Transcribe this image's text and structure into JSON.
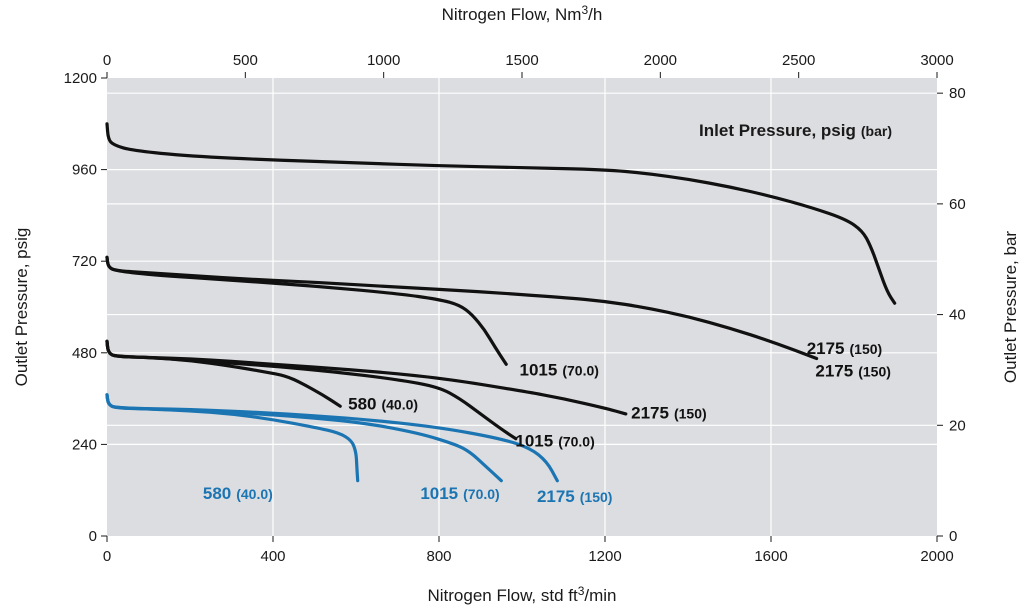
{
  "chart_data": {
    "type": "line",
    "title": "",
    "top_axis": {
      "label": "Nitrogen Flow, Nm",
      "label_sup": "3",
      "label_suffix": "/h",
      "range": [
        0,
        3000
      ],
      "ticks": [
        0,
        500,
        1000,
        1500,
        2000,
        2500,
        3000
      ]
    },
    "bottom_axis": {
      "label": "Nitrogen Flow, std ft",
      "label_sup": "3",
      "label_suffix": "/min",
      "range": [
        0,
        2000
      ],
      "ticks": [
        0,
        400,
        800,
        1200,
        1600,
        2000
      ]
    },
    "left_axis": {
      "label": "Outlet Pressure, psig",
      "range": [
        0,
        1200
      ],
      "ticks": [
        0,
        240,
        480,
        720,
        960,
        1200
      ]
    },
    "right_axis": {
      "label": "Outlet Pressure, bar",
      "range": [
        0,
        82.74
      ],
      "ticks": [
        0,
        20,
        40,
        60,
        80
      ]
    },
    "grid": true,
    "legend_title": "Inlet Pressure, psig",
    "legend_title_sub": "(bar)",
    "colors": {
      "black": "#111111",
      "blue": "#1c75b3",
      "plot_bg": "#dcdde0",
      "grid": "#ffffff"
    },
    "series": [
      {
        "label": "2175",
        "label_sub": "(150)",
        "color": "black",
        "points": [
          [
            0,
            1080
          ],
          [
            3,
            1040
          ],
          [
            15,
            1025
          ],
          [
            60,
            1010
          ],
          [
            200,
            995
          ],
          [
            400,
            985
          ],
          [
            600,
            978
          ],
          [
            800,
            970
          ],
          [
            1000,
            965
          ],
          [
            1200,
            960
          ],
          [
            1300,
            950
          ],
          [
            1400,
            935
          ],
          [
            1500,
            915
          ],
          [
            1600,
            890
          ],
          [
            1700,
            860
          ],
          [
            1780,
            830
          ],
          [
            1820,
            800
          ],
          [
            1840,
            760
          ],
          [
            1860,
            700
          ],
          [
            1880,
            640
          ],
          [
            1898,
            610
          ]
        ],
        "label_at": [
          1707,
          433
        ]
      },
      {
        "label": "1015",
        "label_sub": "(70.0)",
        "color": "black",
        "points": [
          [
            0,
            730
          ],
          [
            3,
            705
          ],
          [
            20,
            695
          ],
          [
            100,
            685
          ],
          [
            300,
            670
          ],
          [
            500,
            655
          ],
          [
            700,
            635
          ],
          [
            800,
            620
          ],
          [
            850,
            605
          ],
          [
            880,
            580
          ],
          [
            910,
            540
          ],
          [
            935,
            495
          ],
          [
            962,
            450
          ]
        ],
        "label_at": [
          994,
          436
        ]
      },
      {
        "label": "2175",
        "label_sub": "(150)",
        "color": "black",
        "points": [
          [
            0,
            730
          ],
          [
            3,
            705
          ],
          [
            20,
            695
          ],
          [
            100,
            690
          ],
          [
            300,
            675
          ],
          [
            500,
            665
          ],
          [
            700,
            652
          ],
          [
            900,
            640
          ],
          [
            1100,
            625
          ],
          [
            1200,
            615
          ],
          [
            1300,
            598
          ],
          [
            1400,
            575
          ],
          [
            1500,
            545
          ],
          [
            1600,
            510
          ],
          [
            1710,
            465
          ]
        ],
        "label_at": [
          1686,
          492
        ]
      },
      {
        "label": "580",
        "label_sub": "(40.0)",
        "color": "black",
        "points": [
          [
            0,
            510
          ],
          [
            3,
            480
          ],
          [
            20,
            470
          ],
          [
            100,
            468
          ],
          [
            200,
            460
          ],
          [
            300,
            445
          ],
          [
            380,
            430
          ],
          [
            430,
            420
          ],
          [
            470,
            400
          ],
          [
            520,
            370
          ],
          [
            562,
            340
          ]
        ],
        "label_at": [
          581,
          347
        ]
      },
      {
        "label": "1015",
        "label_sub": "(70.0)",
        "color": "black",
        "points": [
          [
            0,
            510
          ],
          [
            3,
            480
          ],
          [
            20,
            470
          ],
          [
            100,
            468
          ],
          [
            250,
            457
          ],
          [
            400,
            445
          ],
          [
            550,
            430
          ],
          [
            700,
            410
          ],
          [
            800,
            390
          ],
          [
            850,
            360
          ],
          [
            900,
            320
          ],
          [
            950,
            280
          ],
          [
            985,
            255
          ]
        ],
        "label_at": [
          984,
          250
        ]
      },
      {
        "label": "2175",
        "label_sub": "(150)",
        "color": "black",
        "points": [
          [
            0,
            510
          ],
          [
            3,
            480
          ],
          [
            20,
            470
          ],
          [
            200,
            465
          ],
          [
            400,
            450
          ],
          [
            600,
            435
          ],
          [
            800,
            415
          ],
          [
            1000,
            380
          ],
          [
            1100,
            360
          ],
          [
            1200,
            335
          ],
          [
            1250,
            320
          ]
        ],
        "label_at": [
          1263,
          323
        ]
      },
      {
        "label": "580",
        "label_sub": "(40.0)",
        "color": "blue",
        "points": [
          [
            0,
            370
          ],
          [
            3,
            345
          ],
          [
            20,
            335
          ],
          [
            100,
            333
          ],
          [
            200,
            328
          ],
          [
            300,
            320
          ],
          [
            400,
            305
          ],
          [
            500,
            285
          ],
          [
            560,
            270
          ],
          [
            590,
            250
          ],
          [
            600,
            220
          ],
          [
            602,
            185
          ],
          [
            604,
            145
          ]
        ],
        "label_at": [
          231,
          113
        ]
      },
      {
        "label": "1015",
        "label_sub": "(70.0)",
        "color": "blue",
        "points": [
          [
            0,
            370
          ],
          [
            3,
            345
          ],
          [
            20,
            335
          ],
          [
            200,
            330
          ],
          [
            400,
            318
          ],
          [
            600,
            300
          ],
          [
            750,
            270
          ],
          [
            840,
            240
          ],
          [
            875,
            220
          ],
          [
            910,
            185
          ],
          [
            950,
            145
          ]
        ],
        "label_at": [
          755,
          113
        ]
      },
      {
        "label": "2175",
        "label_sub": "(150)",
        "color": "blue",
        "points": [
          [
            0,
            370
          ],
          [
            3,
            345
          ],
          [
            20,
            335
          ],
          [
            200,
            332
          ],
          [
            400,
            322
          ],
          [
            600,
            308
          ],
          [
            800,
            285
          ],
          [
            950,
            255
          ],
          [
            1020,
            230
          ],
          [
            1060,
            195
          ],
          [
            1085,
            145
          ]
        ],
        "label_at": [
          1036,
          105
        ]
      }
    ]
  }
}
